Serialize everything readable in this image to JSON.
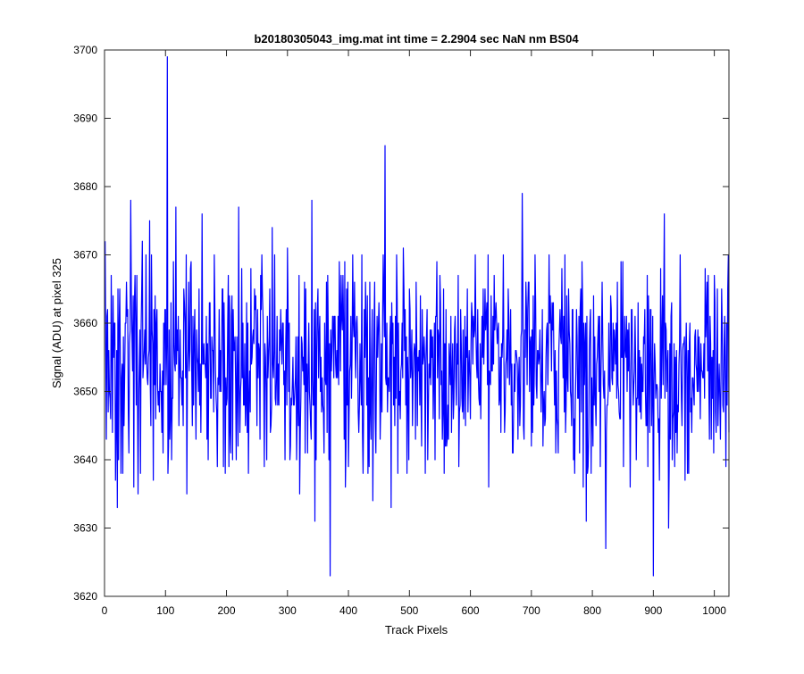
{
  "chart_data": {
    "type": "line",
    "title": "b20180305043_img.mat int time = 2.2904 sec  NaN nm BS04",
    "xlabel": "Track Pixels",
    "ylabel": "Signal (ADU) at pixel 325",
    "xlim": [
      0,
      1024
    ],
    "ylim": [
      3620,
      3700
    ],
    "xticks": [
      0,
      100,
      200,
      300,
      400,
      500,
      600,
      700,
      800,
      900,
      1000
    ],
    "yticks": [
      3620,
      3630,
      3640,
      3650,
      3660,
      3670,
      3680,
      3690,
      3700
    ],
    "grid": false,
    "line_color": "#0000ff",
    "series": [
      {
        "x_start": 1,
        "x_step": 1,
        "baseline": 3654,
        "noise_amplitude": 7,
        "count": 1024,
        "points": [
          [
            1,
            3672
          ],
          [
            3,
            3643
          ],
          [
            5,
            3662
          ],
          [
            8,
            3650
          ],
          [
            11,
            3667
          ],
          [
            15,
            3655
          ],
          [
            18,
            3637
          ],
          [
            21,
            3633
          ],
          [
            25,
            3665
          ],
          [
            30,
            3638
          ],
          [
            35,
            3660
          ],
          [
            40,
            3641
          ],
          [
            43,
            3678
          ],
          [
            48,
            3636
          ],
          [
            52,
            3648
          ],
          [
            55,
            3635
          ],
          [
            62,
            3672
          ],
          [
            70,
            3652
          ],
          [
            74,
            3675
          ],
          [
            80,
            3637
          ],
          [
            86,
            3662
          ],
          [
            93,
            3650
          ],
          [
            100,
            3662
          ],
          [
            103,
            3699
          ],
          [
            107,
            3643
          ],
          [
            110,
            3640
          ],
          [
            114,
            3657
          ],
          [
            117,
            3677
          ],
          [
            122,
            3645
          ],
          [
            130,
            3665
          ],
          [
            135,
            3635
          ],
          [
            141,
            3668
          ],
          [
            150,
            3643
          ],
          [
            160,
            3676
          ],
          [
            170,
            3640
          ],
          [
            180,
            3670
          ],
          [
            185,
            3639
          ],
          [
            193,
            3665
          ],
          [
            200,
            3648
          ],
          [
            210,
            3640
          ],
          [
            220,
            3677
          ],
          [
            226,
            3652
          ],
          [
            232,
            3648
          ],
          [
            240,
            3668
          ],
          [
            250,
            3645
          ],
          [
            256,
            3667
          ],
          [
            262,
            3639
          ],
          [
            275,
            3674
          ],
          [
            286,
            3648
          ],
          [
            300,
            3671
          ],
          [
            303,
            3660
          ],
          [
            315,
            3640
          ],
          [
            320,
            3635
          ],
          [
            330,
            3665
          ],
          [
            338,
            3645
          ],
          [
            340,
            3678
          ],
          [
            345,
            3631
          ],
          [
            350,
            3665
          ],
          [
            360,
            3641
          ],
          [
            370,
            3623
          ],
          [
            376,
            3652
          ],
          [
            385,
            3669
          ],
          [
            395,
            3636
          ],
          [
            410,
            3666
          ],
          [
            425,
            3648
          ],
          [
            440,
            3634
          ],
          [
            450,
            3663
          ],
          [
            460,
            3686
          ],
          [
            465,
            3652
          ],
          [
            470,
            3633
          ],
          [
            482,
            3660
          ],
          [
            490,
            3671
          ],
          [
            505,
            3645
          ],
          [
            518,
            3664
          ],
          [
            530,
            3640
          ],
          [
            545,
            3669
          ],
          [
            556,
            3665
          ],
          [
            562,
            3643
          ],
          [
            570,
            3652
          ],
          [
            580,
            3667
          ],
          [
            592,
            3645
          ],
          [
            605,
            3661
          ],
          [
            615,
            3648
          ],
          [
            630,
            3636
          ],
          [
            642,
            3663
          ],
          [
            650,
            3644
          ],
          [
            662,
            3665
          ],
          [
            670,
            3641
          ],
          [
            685,
            3679
          ],
          [
            700,
            3642
          ],
          [
            712,
            3654
          ],
          [
            720,
            3648
          ],
          [
            730,
            3660
          ],
          [
            740,
            3641
          ],
          [
            750,
            3668
          ],
          [
            760,
            3650
          ],
          [
            770,
            3646
          ],
          [
            780,
            3662
          ],
          [
            785,
            3636
          ],
          [
            790,
            3631
          ],
          [
            800,
            3647
          ],
          [
            810,
            3661
          ],
          [
            822,
            3627
          ],
          [
            830,
            3664
          ],
          [
            840,
            3649
          ],
          [
            850,
            3669
          ],
          [
            862,
            3636
          ],
          [
            870,
            3661
          ],
          [
            880,
            3646
          ],
          [
            889,
            3645
          ],
          [
            895,
            3662
          ],
          [
            900,
            3623
          ],
          [
            905,
            3651
          ],
          [
            910,
            3637
          ],
          [
            918,
            3676
          ],
          [
            925,
            3630
          ],
          [
            930,
            3663
          ],
          [
            940,
            3648
          ],
          [
            952,
            3637
          ],
          [
            960,
            3660
          ],
          [
            972,
            3650
          ],
          [
            985,
            3668
          ],
          [
            996,
            3655
          ],
          [
            1005,
            3665
          ],
          [
            1015,
            3647
          ],
          [
            1020,
            3660
          ],
          [
            1024,
            3644
          ]
        ]
      }
    ]
  }
}
